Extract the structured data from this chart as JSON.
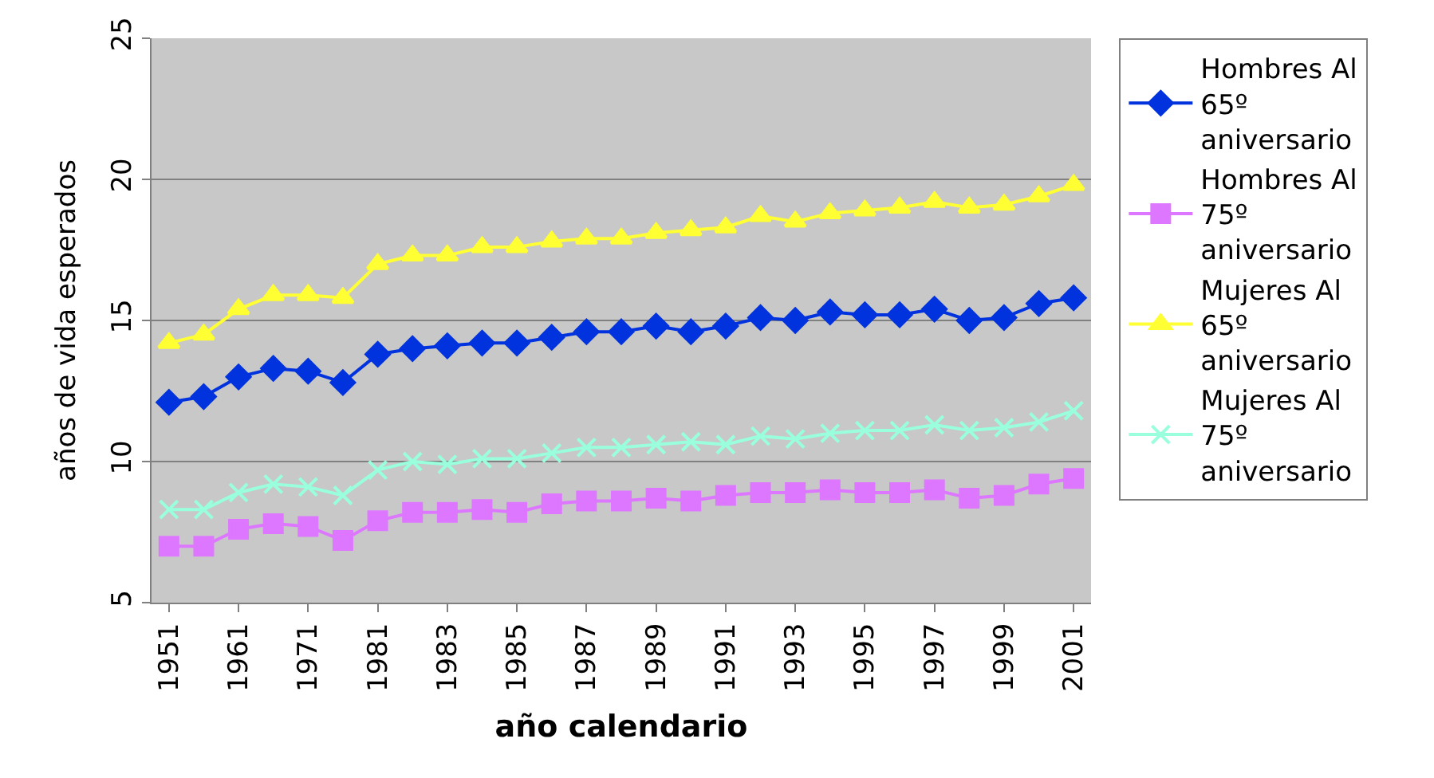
{
  "chart_data": {
    "type": "line",
    "xlabel": "año calendario",
    "ylabel": "años de vida esperados",
    "categories": [
      "1951",
      null,
      "1961",
      null,
      "1971",
      null,
      "1981",
      null,
      "1983",
      null,
      "1985",
      null,
      "1987",
      null,
      "1989",
      null,
      "1991",
      null,
      "1993",
      null,
      "1995",
      null,
      "1997",
      null,
      "1999",
      null,
      "2001"
    ],
    "ylim": [
      5,
      25
    ],
    "yticks": [
      5,
      10,
      15,
      20,
      25
    ],
    "grid": "y",
    "legend": "right",
    "series": [
      {
        "name": "Hombres Al 65º aniversario",
        "color": "#0033dd",
        "marker": "diamond",
        "values": [
          12.1,
          12.3,
          13.0,
          13.3,
          13.2,
          12.8,
          13.8,
          14.0,
          14.1,
          14.2,
          14.2,
          14.4,
          14.6,
          14.6,
          14.8,
          14.6,
          14.8,
          15.1,
          15.0,
          15.3,
          15.2,
          15.2,
          15.4,
          15.0,
          15.1,
          15.6,
          15.8
        ]
      },
      {
        "name": "Hombres Al 75º aniversario",
        "color": "#dd77ff",
        "marker": "square",
        "values": [
          7.0,
          7.0,
          7.6,
          7.8,
          7.7,
          7.2,
          7.9,
          8.2,
          8.2,
          8.3,
          8.2,
          8.5,
          8.6,
          8.6,
          8.7,
          8.6,
          8.8,
          8.9,
          8.9,
          9.0,
          8.9,
          8.9,
          9.0,
          8.7,
          8.8,
          9.2,
          9.4
        ]
      },
      {
        "name": "Mujeres Al 65º aniversario",
        "color": "#ffff33",
        "marker": "triangle",
        "values": [
          14.2,
          14.5,
          15.4,
          15.9,
          15.9,
          15.8,
          17.0,
          17.3,
          17.3,
          17.6,
          17.6,
          17.8,
          17.9,
          17.9,
          18.1,
          18.2,
          18.3,
          18.7,
          18.5,
          18.8,
          18.9,
          19.0,
          19.2,
          19.0,
          19.1,
          19.4,
          19.8
        ]
      },
      {
        "name": "Mujeres Al 75º aniversario",
        "color": "#99ffdd",
        "marker": "cross",
        "values": [
          8.3,
          8.3,
          8.9,
          9.2,
          9.1,
          8.8,
          9.7,
          10.0,
          9.9,
          10.1,
          10.1,
          10.3,
          10.5,
          10.5,
          10.6,
          10.7,
          10.6,
          10.9,
          10.8,
          11.0,
          11.1,
          11.1,
          11.3,
          11.1,
          11.2,
          11.4,
          11.8
        ]
      }
    ]
  }
}
